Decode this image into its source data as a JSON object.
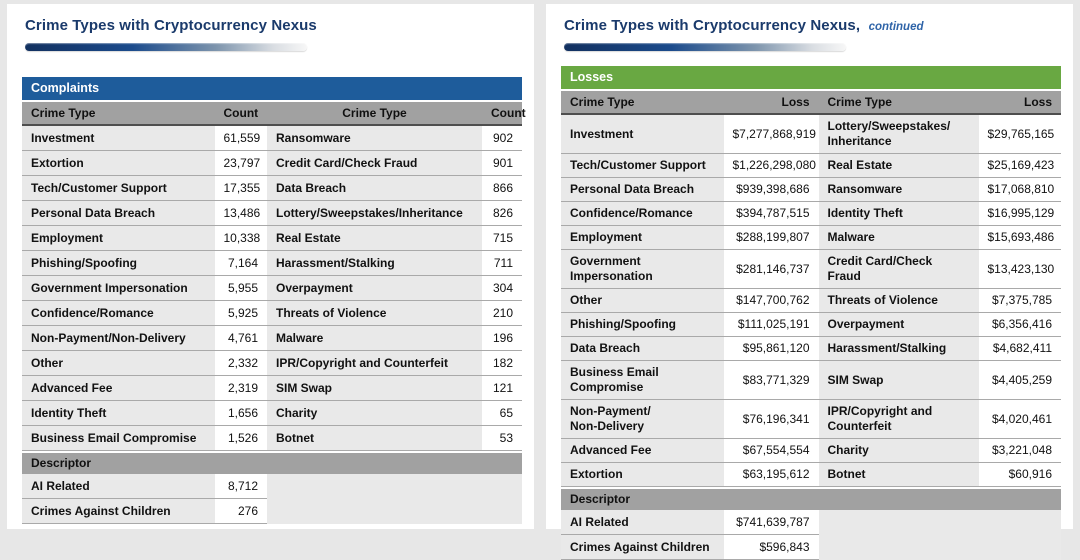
{
  "colors": {
    "title_navy": "#1a3a6b",
    "continued_blue": "#2f64a8",
    "complaints_blue": "#1e5c9b",
    "losses_green": "#69a842",
    "header_gray": "#a1a1a1",
    "row_gray": "#e9e9e9",
    "value_white": "#ffffff"
  },
  "left_page": {
    "title": "Crime Types with Cryptocurrency Nexus",
    "section_header": "Complaints",
    "columns": [
      "Crime Type",
      "Count",
      "Crime Type",
      "Count"
    ],
    "rows": [
      [
        "Investment",
        "61,559",
        "Ransomware",
        "902"
      ],
      [
        "Extortion",
        "23,797",
        "Credit Card/Check Fraud",
        "901"
      ],
      [
        "Tech/Customer Support",
        "17,355",
        "Data Breach",
        "866"
      ],
      [
        "Personal Data Breach",
        "13,486",
        "Lottery/Sweepstakes/Inheritance",
        "826"
      ],
      [
        "Employment",
        "10,338",
        "Real Estate",
        "715"
      ],
      [
        "Phishing/Spoofing",
        "7,164",
        "Harassment/Stalking",
        "711"
      ],
      [
        "Government Impersonation",
        "5,955",
        "Overpayment",
        "304"
      ],
      [
        "Confidence/Romance",
        "5,925",
        "Threats of Violence",
        "210"
      ],
      [
        "Non-Payment/Non-Delivery",
        "4,761",
        "Malware",
        "196"
      ],
      [
        "Other",
        "2,332",
        "IPR/Copyright and Counterfeit",
        "182"
      ],
      [
        "Advanced Fee",
        "2,319",
        "SIM Swap",
        "121"
      ],
      [
        "Identity Theft",
        "1,656",
        "Charity",
        "65"
      ],
      [
        "Business Email Compromise",
        "1,526",
        "Botnet",
        "53"
      ]
    ],
    "descriptor_header": "Descriptor",
    "descriptor_rows": [
      [
        "AI Related",
        "8,712"
      ],
      [
        "Crimes Against Children",
        "276"
      ]
    ]
  },
  "right_page": {
    "title": "Crime Types with Cryptocurrency Nexus,",
    "title_continued": "continued",
    "section_header": "Losses",
    "columns": [
      "Crime Type",
      "Loss",
      "Crime Type",
      "Loss"
    ],
    "rows": [
      [
        "Investment",
        "$7,277,868,919",
        "Lottery/Sweepstakes/\nInheritance",
        "$29,765,165"
      ],
      [
        "Tech/Customer Support",
        "$1,226,298,080",
        "Real Estate",
        "$25,169,423"
      ],
      [
        "Personal Data Breach",
        "$939,398,686",
        "Ransomware",
        "$17,068,810"
      ],
      [
        "Confidence/Romance",
        "$394,787,515",
        "Identity Theft",
        "$16,995,129"
      ],
      [
        "Employment",
        "$288,199,807",
        "Malware",
        "$15,693,486"
      ],
      [
        "Government\nImpersonation",
        "$281,146,737",
        "Credit Card/Check\nFraud",
        "$13,423,130"
      ],
      [
        "Other",
        "$147,700,762",
        "Threats of Violence",
        "$7,375,785"
      ],
      [
        "Phishing/Spoofing",
        "$111,025,191",
        "Overpayment",
        "$6,356,416"
      ],
      [
        "Data Breach",
        "$95,861,120",
        "Harassment/Stalking",
        "$4,682,411"
      ],
      [
        "Business Email\nCompromise",
        "$83,771,329",
        "SIM Swap",
        "$4,405,259"
      ],
      [
        "Non-Payment/\nNon-Delivery",
        "$76,196,341",
        "IPR/Copyright and\nCounterfeit",
        "$4,020,461"
      ],
      [
        "Advanced Fee",
        "$67,554,554",
        "Charity",
        "$3,221,048"
      ],
      [
        "Extortion",
        "$63,195,612",
        "Botnet",
        "$60,916"
      ]
    ],
    "descriptor_header": "Descriptor",
    "descriptor_rows": [
      [
        "AI Related",
        "$741,639,787"
      ],
      [
        "Crimes Against Children",
        "$596,843"
      ]
    ]
  }
}
